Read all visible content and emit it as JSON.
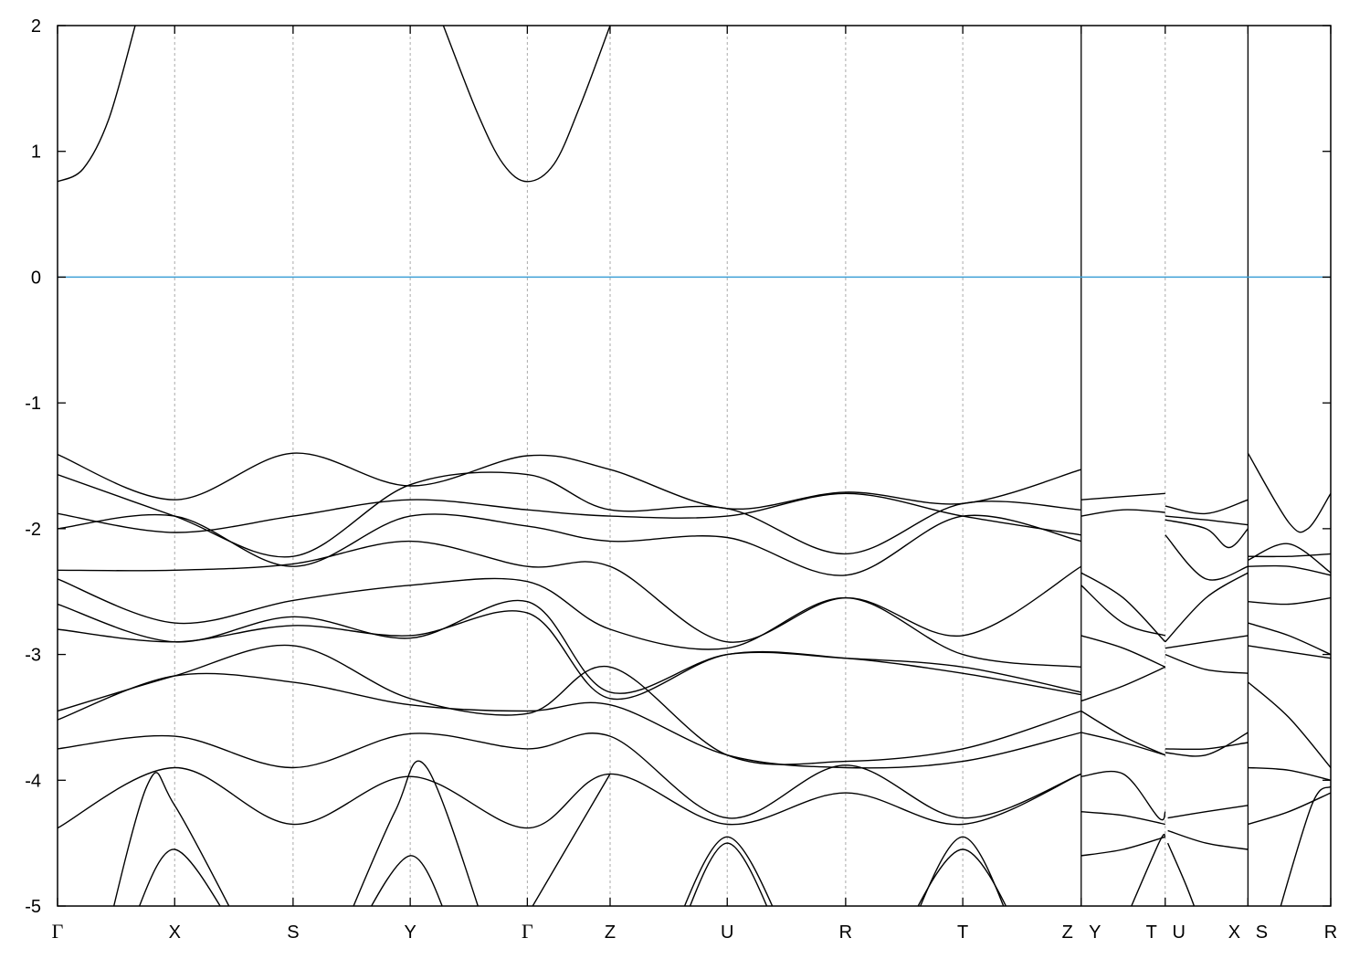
{
  "chart_data": {
    "type": "line",
    "title": "",
    "xlabel": "",
    "ylabel": "",
    "ylim": [
      -5,
      2
    ],
    "yticks": [
      -5,
      -4,
      -3,
      -2,
      -1,
      0,
      1,
      2
    ],
    "xlim": [
      0,
      1
    ],
    "grid": "vertical dashed at high-symmetry points",
    "fermi_level": 0,
    "colors": {
      "bands": "#000000",
      "fermi": "#3ea0d6",
      "grid": "#aaaaaa"
    },
    "kpoints": [
      {
        "label": "Γ",
        "k": 0
      },
      {
        "label": "X",
        "k": 0.092
      },
      {
        "label": "S",
        "k": 0.185
      },
      {
        "label": "Y",
        "k": 0.277
      },
      {
        "label": "Γ",
        "k": 0.369
      },
      {
        "label": "Z",
        "k": 0.434
      },
      {
        "label": "U",
        "k": 0.526
      },
      {
        "label": "R",
        "k": 0.619
      },
      {
        "label": "T",
        "k": 0.711
      },
      {
        "label": "Z",
        "k": 0.804
      },
      {
        "label": "Y",
        "k": 0.804
      },
      {
        "label": "T",
        "k": 0.87
      },
      {
        "label": "U",
        "k": 0.87
      },
      {
        "label": "X",
        "k": 0.935
      },
      {
        "label": "S",
        "k": 0.935
      },
      {
        "label": "R",
        "k": 1.0
      }
    ],
    "breaks": [
      0.804,
      0.935
    ],
    "bands": [
      [
        [
          0,
          0.76
        ],
        [
          0.02,
          0.86
        ],
        [
          0.04,
          1.25
        ],
        [
          0.061,
          2.0
        ]
      ],
      [
        [
          0.303,
          2.0
        ],
        [
          0.33,
          1.3
        ],
        [
          0.35,
          0.9
        ],
        [
          0.369,
          0.76
        ],
        [
          0.39,
          0.9
        ],
        [
          0.41,
          1.35
        ],
        [
          0.434,
          2.0
        ]
      ],
      [
        [
          0,
          -1.41
        ],
        [
          0.092,
          -1.77
        ],
        [
          0.185,
          -1.4
        ],
        [
          0.277,
          -1.66
        ],
        [
          0.369,
          -1.42
        ],
        [
          0.434,
          -1.53
        ],
        [
          0.526,
          -1.84
        ],
        [
          0.619,
          -1.71
        ],
        [
          0.711,
          -1.8
        ],
        [
          0.804,
          -1.53
        ]
      ],
      [
        [
          0,
          -1.57
        ],
        [
          0.092,
          -1.9
        ],
        [
          0.185,
          -2.22
        ],
        [
          0.277,
          -1.65
        ],
        [
          0.369,
          -1.57
        ],
        [
          0.434,
          -1.85
        ],
        [
          0.526,
          -1.84
        ],
        [
          0.619,
          -2.2
        ],
        [
          0.711,
          -1.8
        ],
        [
          0.804,
          -1.85
        ]
      ],
      [
        [
          0,
          -1.88
        ],
        [
          0.092,
          -2.03
        ],
        [
          0.185,
          -1.9
        ],
        [
          0.277,
          -1.77
        ],
        [
          0.369,
          -1.85
        ],
        [
          0.434,
          -1.9
        ],
        [
          0.526,
          -1.9
        ],
        [
          0.619,
          -1.72
        ],
        [
          0.711,
          -1.9
        ],
        [
          0.804,
          -2.05
        ]
      ],
      [
        [
          0,
          -2.0
        ],
        [
          0.092,
          -1.9
        ],
        [
          0.185,
          -2.3
        ],
        [
          0.277,
          -1.9
        ],
        [
          0.369,
          -1.98
        ],
        [
          0.434,
          -2.1
        ],
        [
          0.526,
          -2.07
        ],
        [
          0.619,
          -2.37
        ],
        [
          0.711,
          -1.9
        ],
        [
          0.804,
          -2.1
        ]
      ],
      [
        [
          0,
          -2.33
        ],
        [
          0.092,
          -2.33
        ],
        [
          0.185,
          -2.28
        ],
        [
          0.277,
          -2.1
        ],
        [
          0.369,
          -2.3
        ],
        [
          0.434,
          -2.3
        ],
        [
          0.526,
          -2.9
        ],
        [
          0.619,
          -2.55
        ],
        [
          0.711,
          -2.85
        ],
        [
          0.804,
          -2.3
        ]
      ],
      [
        [
          0,
          -2.4
        ],
        [
          0.092,
          -2.75
        ],
        [
          0.185,
          -2.57
        ],
        [
          0.277,
          -2.45
        ],
        [
          0.369,
          -2.42
        ],
        [
          0.434,
          -2.8
        ],
        [
          0.526,
          -2.95
        ],
        [
          0.619,
          -2.55
        ],
        [
          0.711,
          -3.0
        ],
        [
          0.804,
          -3.1
        ]
      ],
      [
        [
          0,
          -2.6
        ],
        [
          0.092,
          -2.9
        ],
        [
          0.185,
          -2.7
        ],
        [
          0.277,
          -2.87
        ],
        [
          0.369,
          -2.58
        ],
        [
          0.434,
          -3.3
        ],
        [
          0.526,
          -3.0
        ],
        [
          0.619,
          -3.03
        ],
        [
          0.711,
          -3.1
        ],
        [
          0.804,
          -3.3
        ]
      ],
      [
        [
          0,
          -2.8
        ],
        [
          0.092,
          -2.9
        ],
        [
          0.185,
          -2.77
        ],
        [
          0.277,
          -2.85
        ],
        [
          0.369,
          -2.67
        ],
        [
          0.434,
          -3.35
        ],
        [
          0.526,
          -3.0
        ],
        [
          0.619,
          -3.03
        ],
        [
          0.711,
          -3.15
        ],
        [
          0.804,
          -3.32
        ]
      ],
      [
        [
          0,
          -3.45
        ],
        [
          0.092,
          -3.17
        ],
        [
          0.185,
          -2.93
        ],
        [
          0.277,
          -3.35
        ],
        [
          0.369,
          -3.47
        ],
        [
          0.434,
          -3.1
        ],
        [
          0.526,
          -3.8
        ],
        [
          0.619,
          -3.85
        ],
        [
          0.711,
          -3.75
        ],
        [
          0.804,
          -3.45
        ]
      ],
      [
        [
          0,
          -3.52
        ],
        [
          0.092,
          -3.17
        ],
        [
          0.185,
          -3.22
        ],
        [
          0.277,
          -3.4
        ],
        [
          0.369,
          -3.45
        ],
        [
          0.434,
          -3.4
        ],
        [
          0.526,
          -3.8
        ],
        [
          0.619,
          -3.9
        ],
        [
          0.711,
          -3.85
        ],
        [
          0.804,
          -3.62
        ]
      ],
      [
        [
          0,
          -3.75
        ],
        [
          0.092,
          -3.65
        ],
        [
          0.185,
          -3.9
        ],
        [
          0.277,
          -3.63
        ],
        [
          0.369,
          -3.75
        ],
        [
          0.434,
          -3.65
        ],
        [
          0.526,
          -4.3
        ],
        [
          0.619,
          -3.88
        ],
        [
          0.711,
          -4.3
        ],
        [
          0.804,
          -3.95
        ]
      ],
      [
        [
          0,
          -4.38
        ],
        [
          0.092,
          -3.9
        ],
        [
          0.185,
          -4.35
        ],
        [
          0.277,
          -3.97
        ],
        [
          0.369,
          -4.38
        ],
        [
          0.434,
          -3.95
        ],
        [
          0.526,
          -4.35
        ],
        [
          0.619,
          -4.1
        ],
        [
          0.711,
          -4.35
        ],
        [
          0.804,
          -3.95
        ]
      ],
      [
        [
          0.03,
          -5.6
        ],
        [
          0.07,
          -4.05
        ],
        [
          0.092,
          -4.2
        ],
        [
          0.15,
          -5.3
        ]
      ],
      [
        [
          0.06,
          -5.1
        ],
        [
          0.092,
          -4.55
        ],
        [
          0.14,
          -5.2
        ]
      ],
      [
        [
          0.22,
          -5.3
        ],
        [
          0.265,
          -4.25
        ],
        [
          0.29,
          -3.9
        ],
        [
          0.34,
          -5.3
        ]
      ],
      [
        [
          0.23,
          -5.3
        ],
        [
          0.277,
          -4.6
        ],
        [
          0.31,
          -5.2
        ]
      ],
      [
        [
          0.35,
          -5.4
        ],
        [
          0.434,
          -3.95
        ]
      ],
      [
        [
          0.48,
          -5.3
        ],
        [
          0.526,
          -4.45
        ],
        [
          0.575,
          -5.3
        ]
      ],
      [
        [
          0.485,
          -5.3
        ],
        [
          0.526,
          -4.5
        ],
        [
          0.57,
          -5.3
        ]
      ],
      [
        [
          0.66,
          -5.3
        ],
        [
          0.711,
          -4.55
        ],
        [
          0.76,
          -5.3
        ]
      ],
      [
        [
          0.665,
          -5.3
        ],
        [
          0.711,
          -4.45
        ],
        [
          0.755,
          -5.3
        ]
      ],
      [
        [
          0.804,
          -1.77
        ],
        [
          0.87,
          -1.72
        ]
      ],
      [
        [
          0.804,
          -1.9
        ],
        [
          0.837,
          -1.85
        ],
        [
          0.87,
          -1.87
        ]
      ],
      [
        [
          0.804,
          -2.35
        ],
        [
          0.837,
          -2.55
        ],
        [
          0.87,
          -2.9
        ]
      ],
      [
        [
          0.804,
          -2.45
        ],
        [
          0.837,
          -2.75
        ],
        [
          0.87,
          -2.85
        ]
      ],
      [
        [
          0.804,
          -2.85
        ],
        [
          0.837,
          -2.95
        ],
        [
          0.87,
          -3.1
        ]
      ],
      [
        [
          0.804,
          -3.37
        ],
        [
          0.837,
          -3.25
        ],
        [
          0.87,
          -3.1
        ]
      ],
      [
        [
          0.804,
          -3.45
        ],
        [
          0.837,
          -3.65
        ],
        [
          0.87,
          -3.8
        ]
      ],
      [
        [
          0.804,
          -3.62
        ],
        [
          0.837,
          -3.7
        ],
        [
          0.87,
          -3.8
        ]
      ],
      [
        [
          0.804,
          -3.97
        ],
        [
          0.837,
          -3.95
        ],
        [
          0.865,
          -4.3
        ],
        [
          0.87,
          -4.25
        ]
      ],
      [
        [
          0.804,
          -4.25
        ],
        [
          0.837,
          -4.28
        ],
        [
          0.87,
          -4.35
        ]
      ],
      [
        [
          0.804,
          -4.6
        ],
        [
          0.837,
          -4.55
        ],
        [
          0.87,
          -4.45
        ]
      ],
      [
        [
          0.835,
          -5.2
        ],
        [
          0.865,
          -4.5
        ],
        [
          0.87,
          -4.45
        ]
      ],
      [
        [
          0.87,
          -1.82
        ],
        [
          0.902,
          -1.88
        ],
        [
          0.935,
          -1.77
        ]
      ],
      [
        [
          0.87,
          -1.9
        ],
        [
          0.902,
          -1.93
        ],
        [
          0.935,
          -1.97
        ]
      ],
      [
        [
          0.87,
          -1.93
        ],
        [
          0.902,
          -2.0
        ],
        [
          0.92,
          -2.15
        ],
        [
          0.935,
          -2.0
        ]
      ],
      [
        [
          0.87,
          -2.05
        ],
        [
          0.902,
          -2.4
        ],
        [
          0.935,
          -2.3
        ]
      ],
      [
        [
          0.87,
          -2.9
        ],
        [
          0.902,
          -2.55
        ],
        [
          0.935,
          -2.35
        ]
      ],
      [
        [
          0.87,
          -2.95
        ],
        [
          0.902,
          -2.9
        ],
        [
          0.935,
          -2.85
        ]
      ],
      [
        [
          0.87,
          -3.0
        ],
        [
          0.902,
          -3.12
        ],
        [
          0.935,
          -3.15
        ]
      ],
      [
        [
          0.87,
          -3.75
        ],
        [
          0.902,
          -3.75
        ],
        [
          0.935,
          -3.7
        ]
      ],
      [
        [
          0.87,
          -3.78
        ],
        [
          0.902,
          -3.8
        ],
        [
          0.935,
          -3.62
        ]
      ],
      [
        [
          0.872,
          -4.3
        ],
        [
          0.902,
          -4.25
        ],
        [
          0.935,
          -4.2
        ]
      ],
      [
        [
          0.872,
          -4.4
        ],
        [
          0.902,
          -4.5
        ],
        [
          0.935,
          -4.55
        ]
      ],
      [
        [
          0.872,
          -4.5
        ],
        [
          0.887,
          -4.85
        ],
        [
          0.9,
          -5.2
        ]
      ],
      [
        [
          0.935,
          -1.4
        ],
        [
          0.967,
          -1.95
        ],
        [
          0.982,
          -2.0
        ],
        [
          1.0,
          -1.72
        ]
      ],
      [
        [
          0.935,
          -2.22
        ],
        [
          0.967,
          -2.22
        ],
        [
          1.0,
          -2.2
        ]
      ],
      [
        [
          0.935,
          -2.25
        ],
        [
          0.967,
          -2.12
        ],
        [
          1.0,
          -2.35
        ]
      ],
      [
        [
          0.935,
          -2.3
        ],
        [
          0.967,
          -2.3
        ],
        [
          1.0,
          -2.37
        ]
      ],
      [
        [
          0.935,
          -2.58
        ],
        [
          0.967,
          -2.6
        ],
        [
          1.0,
          -2.55
        ]
      ],
      [
        [
          0.935,
          -2.75
        ],
        [
          0.967,
          -2.85
        ],
        [
          1.0,
          -3.0
        ]
      ],
      [
        [
          0.935,
          -2.93
        ],
        [
          0.967,
          -2.98
        ],
        [
          1.0,
          -3.03
        ]
      ],
      [
        [
          0.935,
          -3.22
        ],
        [
          0.967,
          -3.5
        ],
        [
          1.0,
          -3.9
        ]
      ],
      [
        [
          0.935,
          -3.9
        ],
        [
          0.967,
          -3.92
        ],
        [
          1.0,
          -4.0
        ]
      ],
      [
        [
          0.935,
          -4.35
        ],
        [
          0.967,
          -4.25
        ],
        [
          1.0,
          -4.1
        ]
      ],
      [
        [
          0.955,
          -5.2
        ],
        [
          0.985,
          -4.2
        ],
        [
          1.0,
          -4.05
        ]
      ]
    ]
  }
}
